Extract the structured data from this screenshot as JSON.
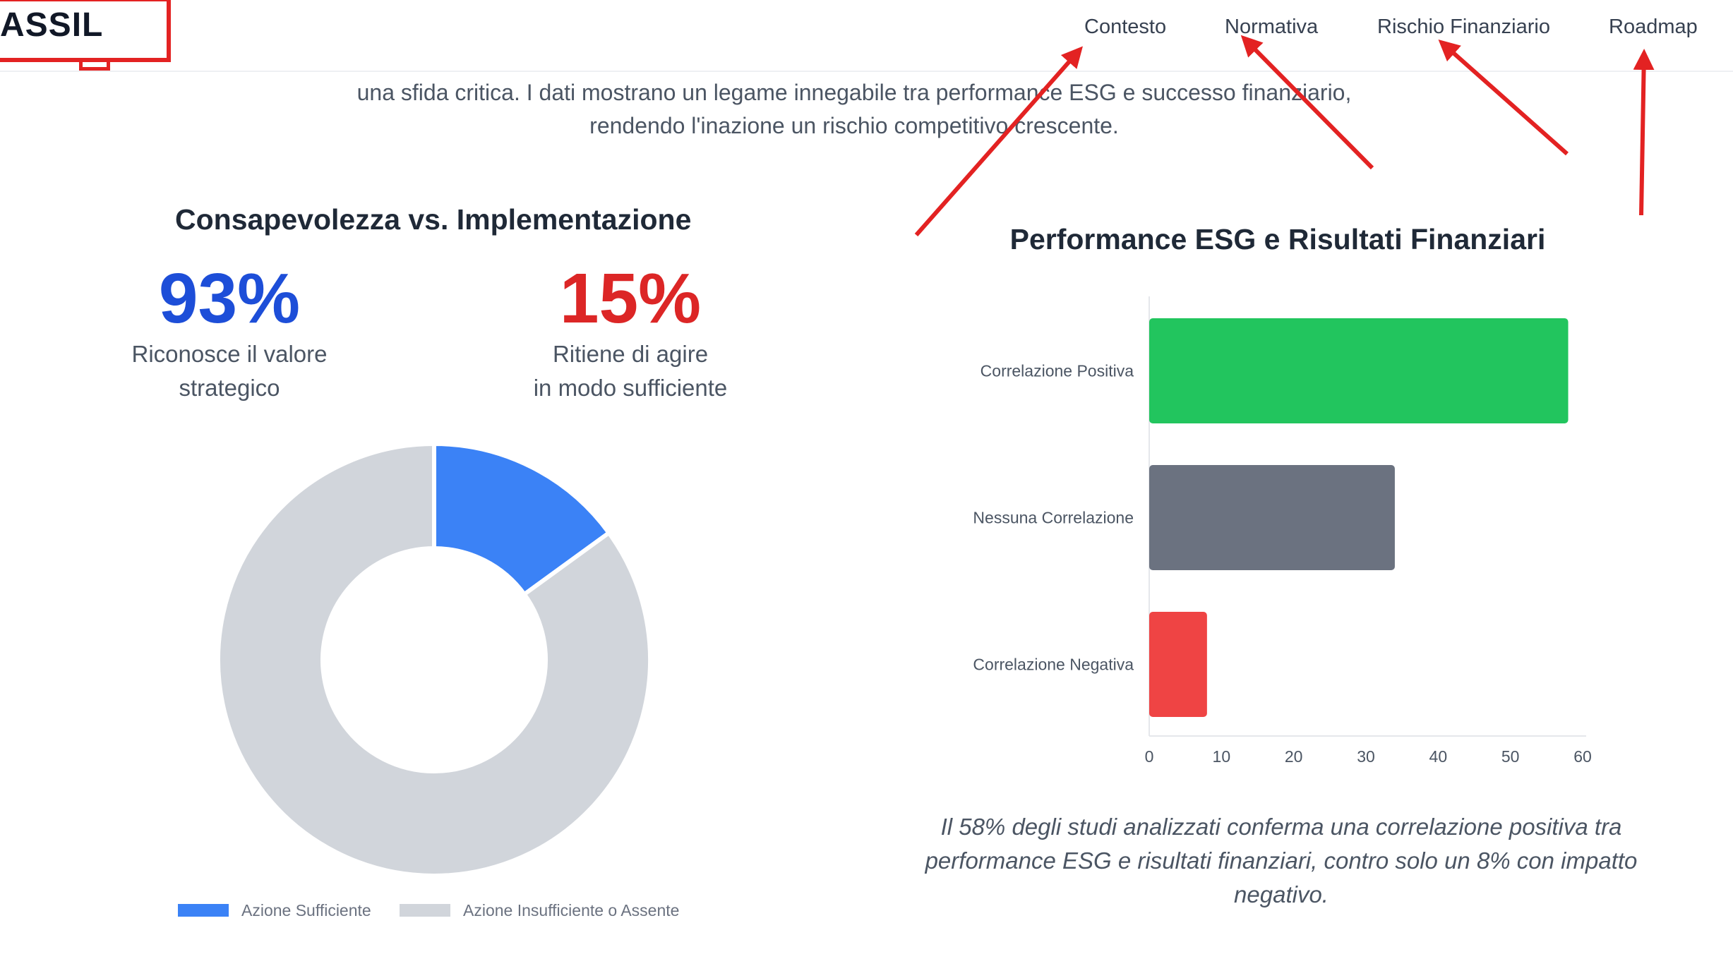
{
  "nav": {
    "logo": "ASSIL",
    "links": [
      "Contesto",
      "Normativa",
      "Rischio Finanziario",
      "Roadmap"
    ]
  },
  "intro": {
    "line1": "una sfida critica. I dati mostrano un legame innegabile tra performance ESG e successo finanziario,",
    "line2": "rendendo l'inazione un rischio competitivo crescente."
  },
  "awareness": {
    "title": "Consapevolezza vs. Implementazione",
    "stat1": {
      "value": "93%",
      "caption_l1": "Riconosce il valore",
      "caption_l2": "strategico",
      "color": "#1d4ed8"
    },
    "stat2": {
      "value": "15%",
      "caption_l1": "Ritiene di agire",
      "caption_l2": "in modo sufficiente",
      "color": "#dc2626"
    }
  },
  "performance": {
    "title": "Performance ESG e Risultati Finanziari",
    "note_l1": "Il 58% degli studi analizzati conferma una correlazione positiva tra",
    "note_l2": "performance ESG e risultati finanziari, contro solo un 8% con impatto",
    "note_l3": "negativo."
  },
  "chart_data": [
    {
      "type": "pie",
      "subtype": "doughnut",
      "labels": [
        "Azione Sufficiente",
        "Azione Insufficiente o Assente"
      ],
      "values": [
        15,
        85
      ],
      "colors": [
        "#3b82f6",
        "#d1d5db"
      ],
      "legend": "bottom"
    },
    {
      "type": "bar",
      "orientation": "horizontal",
      "categories": [
        "Correlazione Positiva",
        "Nessuna Correlazione",
        "Correlazione Negativa"
      ],
      "values": [
        58,
        34,
        8
      ],
      "colors": [
        "#22c55e",
        "#6b7280",
        "#ef4444"
      ],
      "xlim": [
        0,
        60
      ],
      "xticks": [
        0,
        10,
        20,
        30,
        40,
        50,
        60
      ],
      "grid": false
    }
  ],
  "annotations": {
    "arrow_color": "#e32222"
  }
}
